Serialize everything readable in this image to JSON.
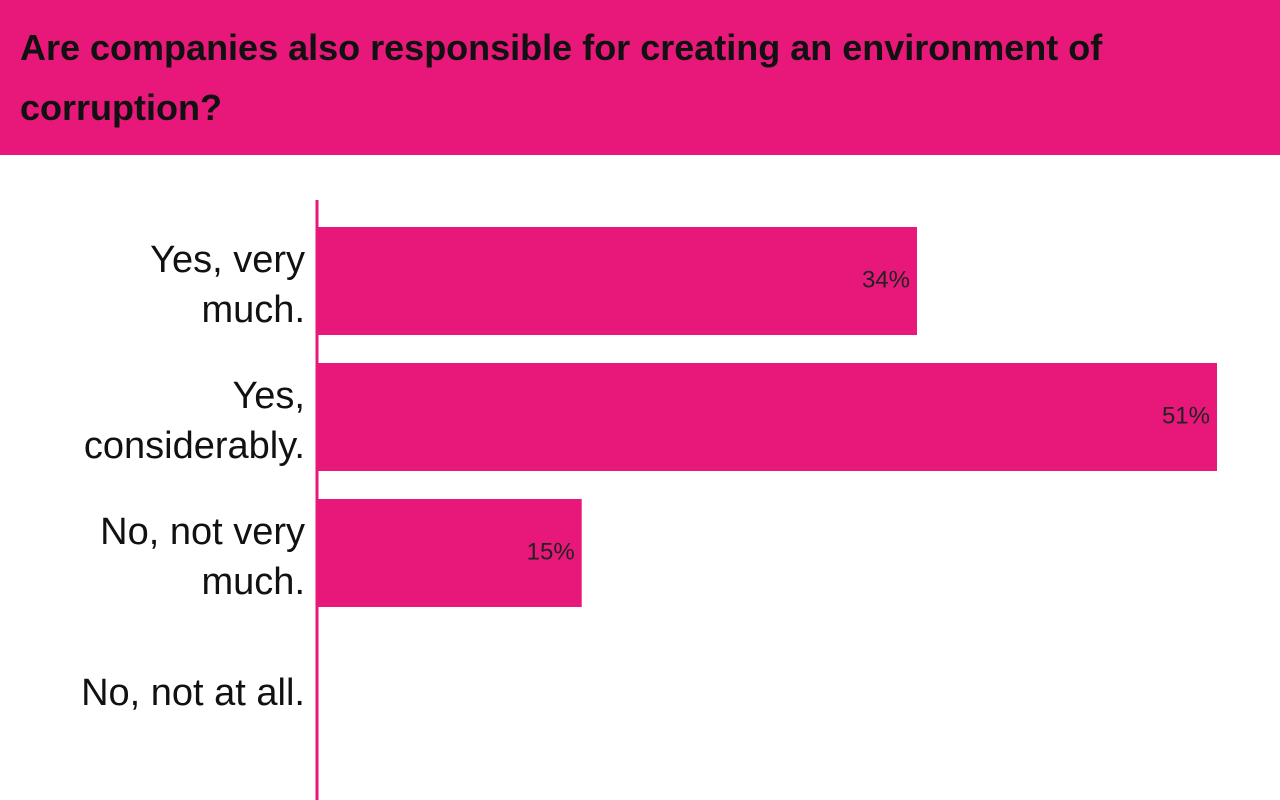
{
  "chart_data": {
    "type": "hbar",
    "title": "Are companies also responsible for creating an environment of corruption?",
    "categories": [
      "Yes, very much.",
      "Yes, considerably.",
      "No, not very much.",
      "No, not at all."
    ],
    "values": [
      34,
      51,
      15,
      0
    ],
    "value_labels": [
      "34%",
      "51%",
      "15%",
      null
    ],
    "color": "#e8177a"
  }
}
